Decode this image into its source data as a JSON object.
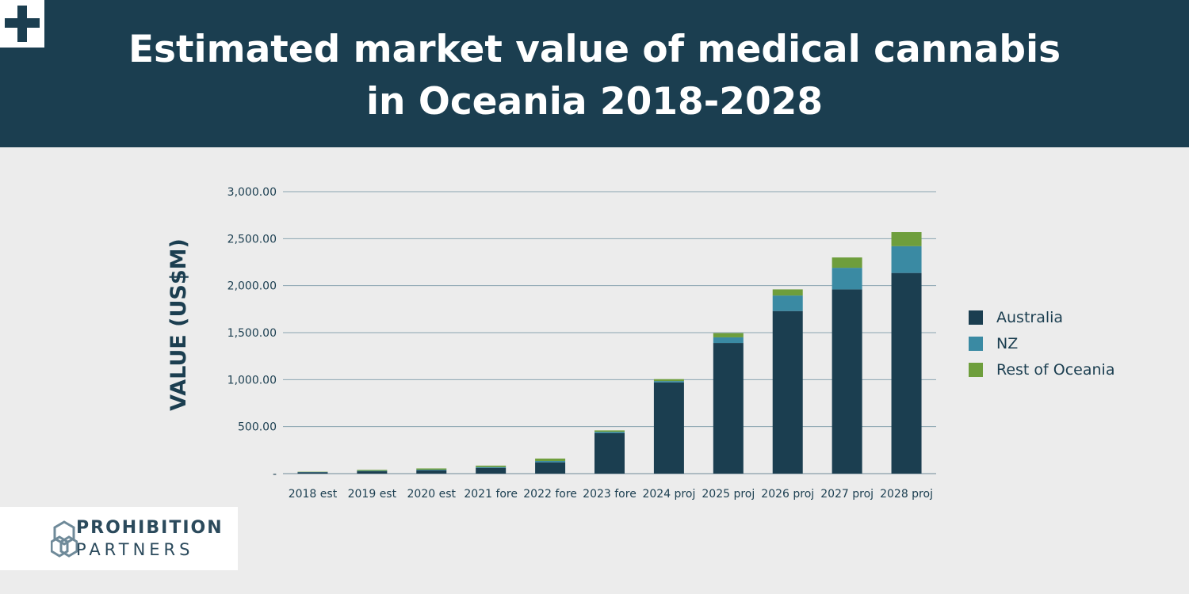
{
  "header": {
    "title_line1": "Estimated market value of medical cannabis",
    "title_line2": "in Oceania 2018-2028"
  },
  "brand": {
    "line1": "PROHIBITION",
    "line2": "PARTNERS"
  },
  "colors": {
    "header_bg": "#1b3e50",
    "australia": "#1b3e50",
    "nz": "#3a8aa3",
    "rest_of_oceania": "#6e9e3c",
    "grid": "#8aa4b0"
  },
  "chart_data": {
    "type": "bar",
    "stacked": true,
    "ylabel": "VALUE (US$M)",
    "xlabel": "",
    "ylim": [
      0,
      3000
    ],
    "yticks": [
      0,
      500,
      1000,
      1500,
      2000,
      2500,
      3000
    ],
    "ytick_labels": [
      "-",
      "500.00",
      "1,000.00",
      "1,500.00",
      "2,000.00",
      "2,500.00",
      "3,000.00"
    ],
    "grid": true,
    "legend_position": "right",
    "categories": [
      "2018 est",
      "2019 est",
      "2020 est",
      "2021 fore",
      "2022 fore",
      "2023 fore",
      "2024 proj",
      "2025 proj",
      "2026 proj",
      "2027 proj",
      "2028 proj"
    ],
    "series": [
      {
        "name": "Australia",
        "color": "#1b3e50",
        "values": [
          15,
          25,
          35,
          60,
          120,
          430,
          970,
          1390,
          1730,
          1960,
          2135
        ]
      },
      {
        "name": "NZ",
        "color": "#3a8aa3",
        "values": [
          2,
          5,
          7,
          10,
          15,
          15,
          15,
          60,
          165,
          230,
          285
        ]
      },
      {
        "name": "Rest of Oceania",
        "color": "#6e9e3c",
        "values": [
          3,
          10,
          13,
          15,
          25,
          15,
          20,
          45,
          65,
          110,
          150
        ]
      }
    ]
  }
}
